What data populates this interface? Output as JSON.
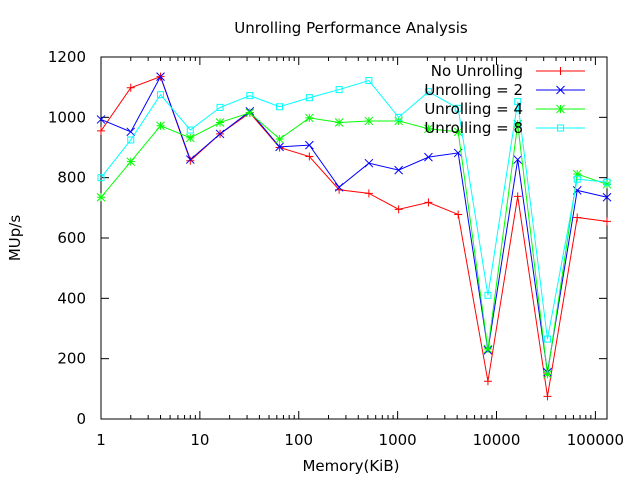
{
  "chart_data": {
    "type": "line",
    "title": "Unrolling Performance Analysis",
    "xlabel": "Memory(KiB)",
    "ylabel": "MUp/s",
    "x_scale": "log",
    "xlim": [
      1,
      131072
    ],
    "ylim": [
      0,
      1200
    ],
    "grid": false,
    "legend_position": "top-right",
    "x_ticks": [
      1,
      10,
      100,
      1000,
      10000,
      100000
    ],
    "x_tick_labels": [
      "1",
      "10",
      "100",
      "1000",
      "10000",
      "100000"
    ],
    "y_ticks": [
      0,
      200,
      400,
      600,
      800,
      1000,
      1200
    ],
    "y_tick_labels": [
      "0",
      "200",
      "400",
      "600",
      "800",
      "1000",
      "1200"
    ],
    "x": [
      1,
      2,
      4,
      8,
      16,
      32,
      64,
      128,
      256,
      512,
      1024,
      2048,
      4096,
      8192,
      16384,
      32768,
      65536,
      131072
    ],
    "series": [
      {
        "name": "No Unrolling",
        "color": "#ff0000",
        "marker": "plus",
        "values": [
          955,
          1098,
          1135,
          856,
          945,
          1015,
          900,
          870,
          760,
          748,
          695,
          718,
          678,
          125,
          738,
          75,
          668,
          655
        ]
      },
      {
        "name": "Unrolling = 2",
        "color": "#0000ff",
        "marker": "cross",
        "values": [
          993,
          952,
          1135,
          860,
          945,
          1020,
          902,
          908,
          768,
          848,
          825,
          868,
          882,
          228,
          860,
          155,
          758,
          735
        ]
      },
      {
        "name": "Unrolling = 4",
        "color": "#00ff00",
        "marker": "star",
        "values": [
          735,
          853,
          972,
          932,
          983,
          1015,
          928,
          998,
          983,
          988,
          988,
          962,
          952,
          232,
          978,
          148,
          812,
          778
        ]
      },
      {
        "name": "Unrolling = 8",
        "color": "#00ffff",
        "marker": "square",
        "values": [
          800,
          925,
          1075,
          958,
          1033,
          1072,
          1035,
          1065,
          1092,
          1122,
          1000,
          1085,
          1030,
          410,
          1052,
          265,
          795,
          785
        ]
      }
    ]
  }
}
